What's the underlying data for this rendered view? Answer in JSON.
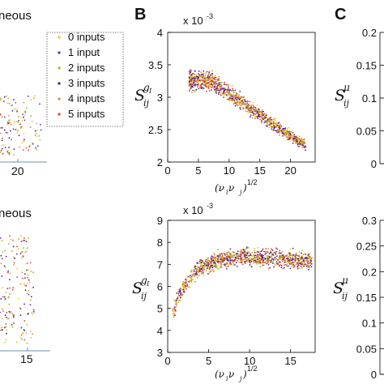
{
  "panel_letters": {
    "b": "B",
    "c": "C"
  },
  "left_titles": {
    "top": "neous",
    "bottom": "neous"
  },
  "legend": [
    "0 inputs",
    "1 input",
    "2 inputs",
    "3 inputs",
    "4 inputs",
    "5 inputs"
  ],
  "colors": {
    "series": [
      "#f0c020",
      "#6a2a9a",
      "#b8b020",
      "#4a1a7a",
      "#d09030",
      "#e04030"
    ],
    "axis": "#000000",
    "left_axis": "#6a90b0"
  },
  "chart_data": [
    {
      "type": "scatter",
      "panel": "A-top (partial)",
      "x_ticks": [
        "20"
      ],
      "note_visible": "right portion only"
    },
    {
      "type": "scatter",
      "panel": "A-bottom (partial)",
      "x_ticks": [
        "15"
      ]
    },
    {
      "type": "scatter",
      "panel": "B-top",
      "xlabel_base": "(ν",
      "xlabel_i": "i",
      "xlabel_mid": " ν",
      "xlabel_j": "j",
      "xlabel_close": ")",
      "xlabel_exp": "1/2",
      "ylabel_main": "S",
      "ylabel_sup": "g",
      "ylabel_supsub": "I",
      "ylabel_sub": "ij",
      "scale_label": "x 10",
      "scale_exp": "-3",
      "xlim": [
        0,
        24
      ],
      "ylim": [
        2,
        4
      ],
      "x_ticks": [
        "0",
        "5",
        "10",
        "15",
        "20"
      ],
      "y_ticks": [
        "2",
        "2.5",
        "3",
        "3.5",
        "4"
      ],
      "series_names_ref": "legend"
    },
    {
      "type": "scatter",
      "panel": "B-bottom",
      "xlabel_base": "(ν",
      "xlabel_i": "i",
      "xlabel_mid": " ν",
      "xlabel_j": "j",
      "xlabel_close": ")",
      "xlabel_exp": "1/2",
      "ylabel_main": "S",
      "ylabel_sup": "g",
      "ylabel_supsub": "I",
      "ylabel_sub": "ij",
      "scale_label": "x 10",
      "scale_exp": "-3",
      "xlim": [
        0,
        18
      ],
      "ylim": [
        3,
        9
      ],
      "x_ticks": [
        "0",
        "5",
        "10",
        "15"
      ],
      "y_ticks": [
        "3",
        "4",
        "5",
        "6",
        "7",
        "8",
        "9"
      ]
    },
    {
      "type": "scatter",
      "panel": "C-top (partial)",
      "ylabel_main": "S",
      "ylabel_sup": "μ",
      "ylabel_sub": "ij",
      "ylim": [
        0,
        0.2
      ],
      "y_ticks": [
        "0",
        "0.05",
        "0.1",
        "0.15",
        "0.2"
      ]
    },
    {
      "type": "scatter",
      "panel": "C-bottom (partial)",
      "ylabel_main": "S",
      "ylabel_sup": "μ",
      "ylabel_sub": "ij",
      "ylim": [
        0,
        0.3
      ],
      "y_ticks": [
        "0",
        "0.05",
        "0.1",
        "0.15",
        "0.2",
        "0.25",
        "0.3"
      ]
    }
  ]
}
